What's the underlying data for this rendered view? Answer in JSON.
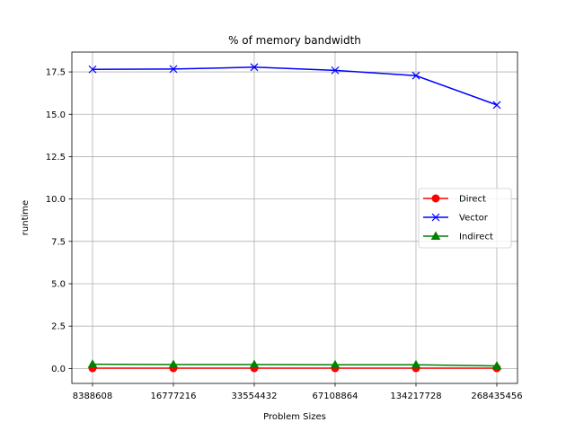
{
  "chart_data": {
    "type": "line",
    "title": "% of memory bandwidth",
    "xlabel": "Problem Sizes",
    "ylabel": "runtime",
    "categories": [
      "8388608",
      "16777216",
      "33554432",
      "67108864",
      "134217728",
      "268435456"
    ],
    "ylim": [
      -0.88,
      18.67
    ],
    "yticks": [
      "0.0",
      "2.5",
      "5.0",
      "7.5",
      "10.0",
      "12.5",
      "15.0",
      "17.5"
    ],
    "grid": true,
    "legend_position": "center-right",
    "series": [
      {
        "name": "Direct",
        "color": "#ff0000",
        "marker": "circle",
        "values": [
          0.02,
          0.02,
          0.02,
          0.02,
          0.02,
          0.02
        ]
      },
      {
        "name": "Vector",
        "color": "#0000ff",
        "marker": "x",
        "values": [
          17.65,
          17.67,
          17.78,
          17.59,
          17.28,
          15.55
        ]
      },
      {
        "name": "Indirect",
        "color": "#008000",
        "marker": "triangle",
        "values": [
          0.25,
          0.23,
          0.23,
          0.22,
          0.22,
          0.15
        ]
      }
    ]
  }
}
